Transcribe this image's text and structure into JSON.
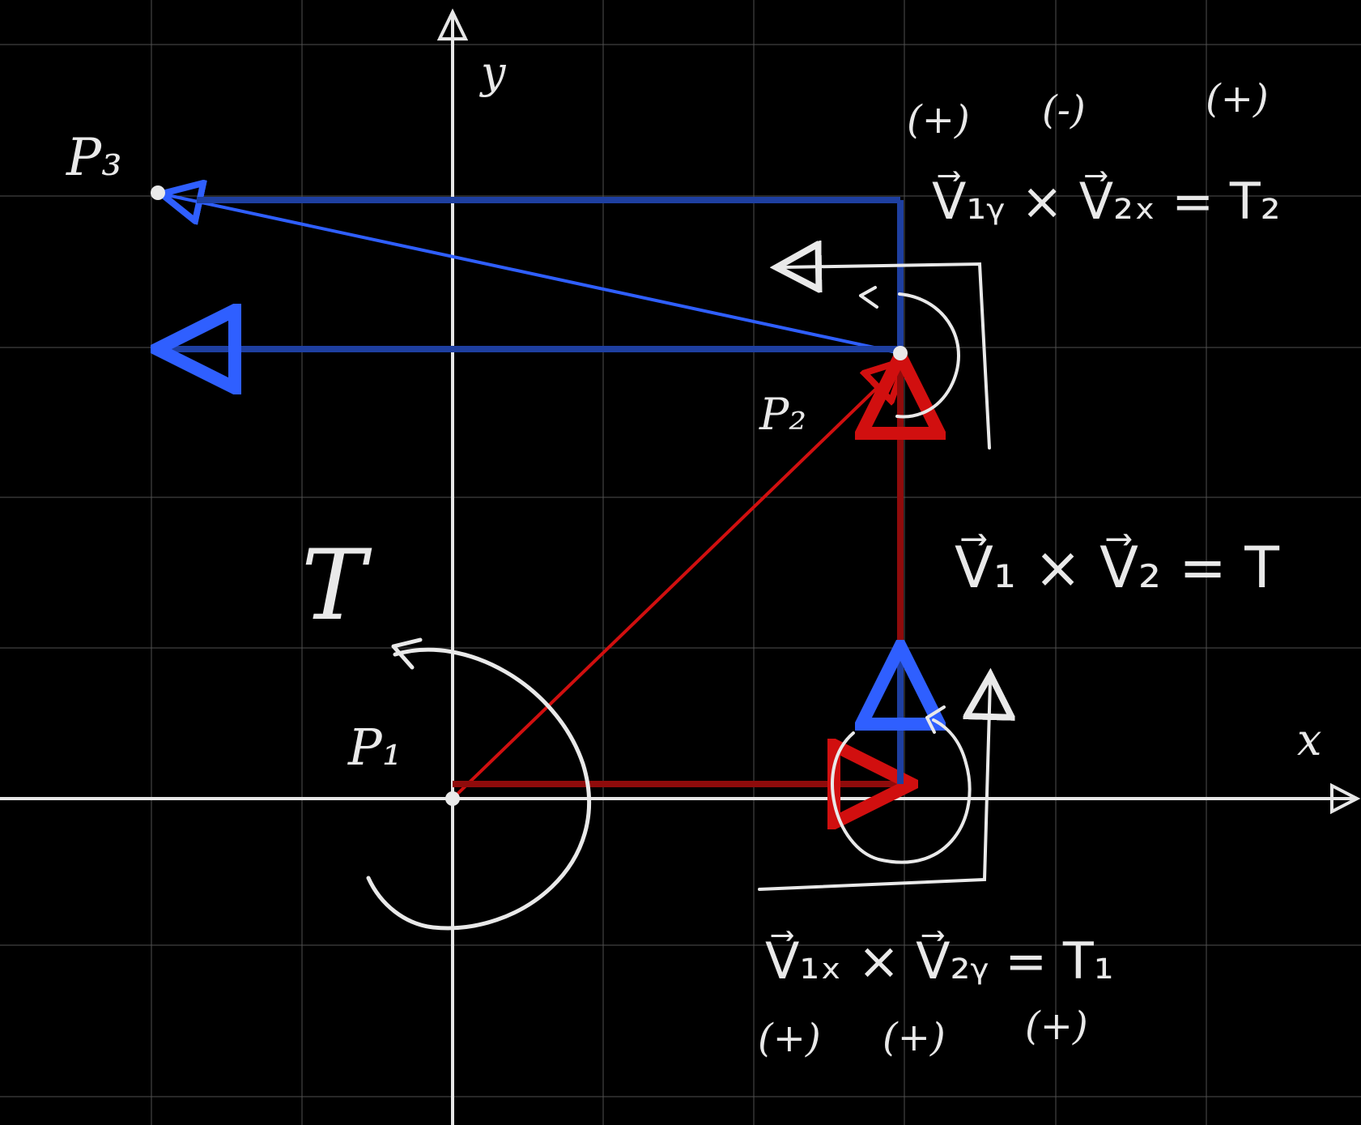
{
  "colors": {
    "background": "#000000",
    "grid": "#5e5e5e",
    "axis": "#e6e6e6",
    "chalk": "#e9e9e9",
    "red": "#d10f0f",
    "dark_red": "#8f0b0b",
    "blue": "#2f5fff",
    "dark_blue": "#1e3fa0"
  },
  "axes": {
    "x_label": "x",
    "y_label": "y"
  },
  "points": {
    "p1": "P₁",
    "p2": "P₂",
    "p3": "P₃"
  },
  "torque_labels": {
    "main": "T",
    "equation_main": "V⃗₁ × V⃗₂ = T",
    "equation_t1": "V⃗₁ₓ × V⃗₂ᵧ = T₁",
    "equation_t2": "V⃗₁ᵧ × V⃗₂ₓ = T₂",
    "signs_t1": [
      "(+)",
      "(+)",
      "(+)"
    ],
    "signs_t2": [
      "(+)",
      "(-)",
      "(+)"
    ]
  },
  "icons": {
    "p1_rotation": "counterclockwise-arrow-icon",
    "t1_rotation": "counterclockwise-arrow-icon",
    "t2_rotation": "counterclockwise-arrow-icon"
  }
}
